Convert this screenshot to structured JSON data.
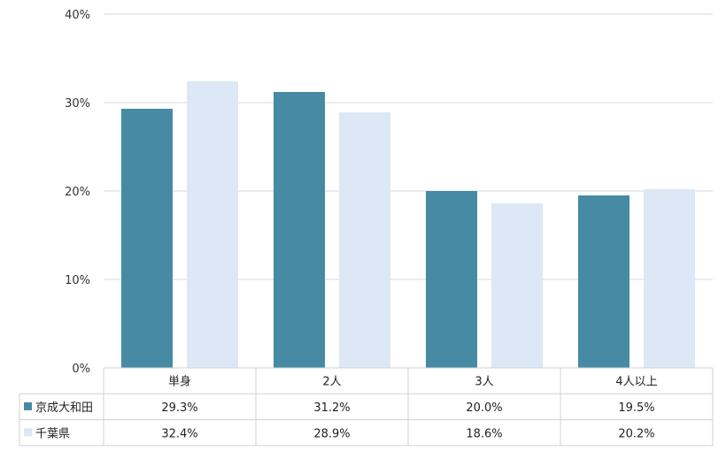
{
  "chart_data": {
    "type": "bar",
    "categories": [
      "単身",
      "2人",
      "3人",
      "4人以上"
    ],
    "series": [
      {
        "name": "京成大和田",
        "values": [
          29.3,
          31.2,
          20.0,
          19.5
        ],
        "labels": [
          "29.3%",
          "31.2%",
          "20.0%",
          "19.5%"
        ],
        "color": "#468BA3"
      },
      {
        "name": "千葉県",
        "values": [
          32.4,
          28.9,
          18.6,
          20.2
        ],
        "labels": [
          "32.4%",
          "28.9%",
          "18.6%",
          "20.2%"
        ],
        "color": "#DCE8F5"
      }
    ],
    "title": "",
    "xlabel": "",
    "ylabel": "",
    "ylim": [
      0,
      40
    ],
    "yticks": [
      0,
      10,
      20,
      30,
      40
    ],
    "ytick_labels": [
      "0%",
      "10%",
      "20%",
      "30%",
      "40%"
    ],
    "grid": true,
    "legend": "data-table-left"
  },
  "colors": {
    "grid": "#D9D9D9",
    "table_border": "#D0D0D0"
  }
}
